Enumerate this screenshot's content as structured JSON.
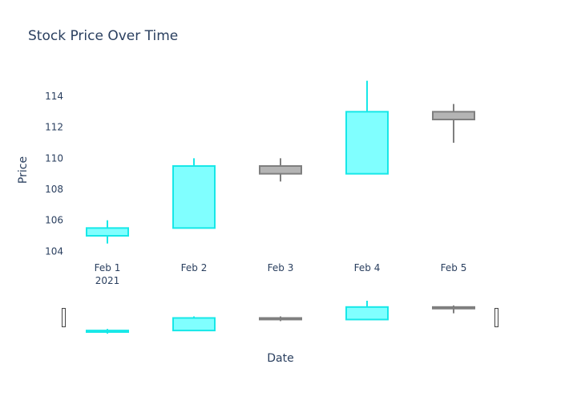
{
  "chart_data": {
    "type": "candlestick",
    "title": "Stock Price Over Time",
    "xlabel": "Date",
    "ylabel": "Price",
    "categories": [
      "Feb 1",
      "Feb 2",
      "Feb 3",
      "Feb 4",
      "Feb 5"
    ],
    "year_label": "2021",
    "ohlc": [
      {
        "date": "Feb 1",
        "open": 105.0,
        "high": 106.0,
        "low": 104.5,
        "close": 105.5
      },
      {
        "date": "Feb 2",
        "open": 105.5,
        "high": 110.0,
        "low": 105.5,
        "close": 109.5
      },
      {
        "date": "Feb 3",
        "open": 109.5,
        "high": 110.0,
        "low": 108.5,
        "close": 109.0
      },
      {
        "date": "Feb 4",
        "open": 109.0,
        "high": 115.0,
        "low": 109.0,
        "close": 113.0
      },
      {
        "date": "Feb 5",
        "open": 113.0,
        "high": 113.5,
        "low": 111.0,
        "close": 112.5
      }
    ],
    "yticks": [
      104,
      106,
      108,
      110,
      112,
      114
    ],
    "ylim": [
      103.5,
      117
    ],
    "grid": false,
    "range_slider": true,
    "colors": {
      "increasing_line": "#17e8e8",
      "increasing_fill": "#80ffff",
      "decreasing_line": "#7f7f7f",
      "decreasing_fill": "#b4b4b4",
      "text": "#2a3f5f"
    }
  }
}
